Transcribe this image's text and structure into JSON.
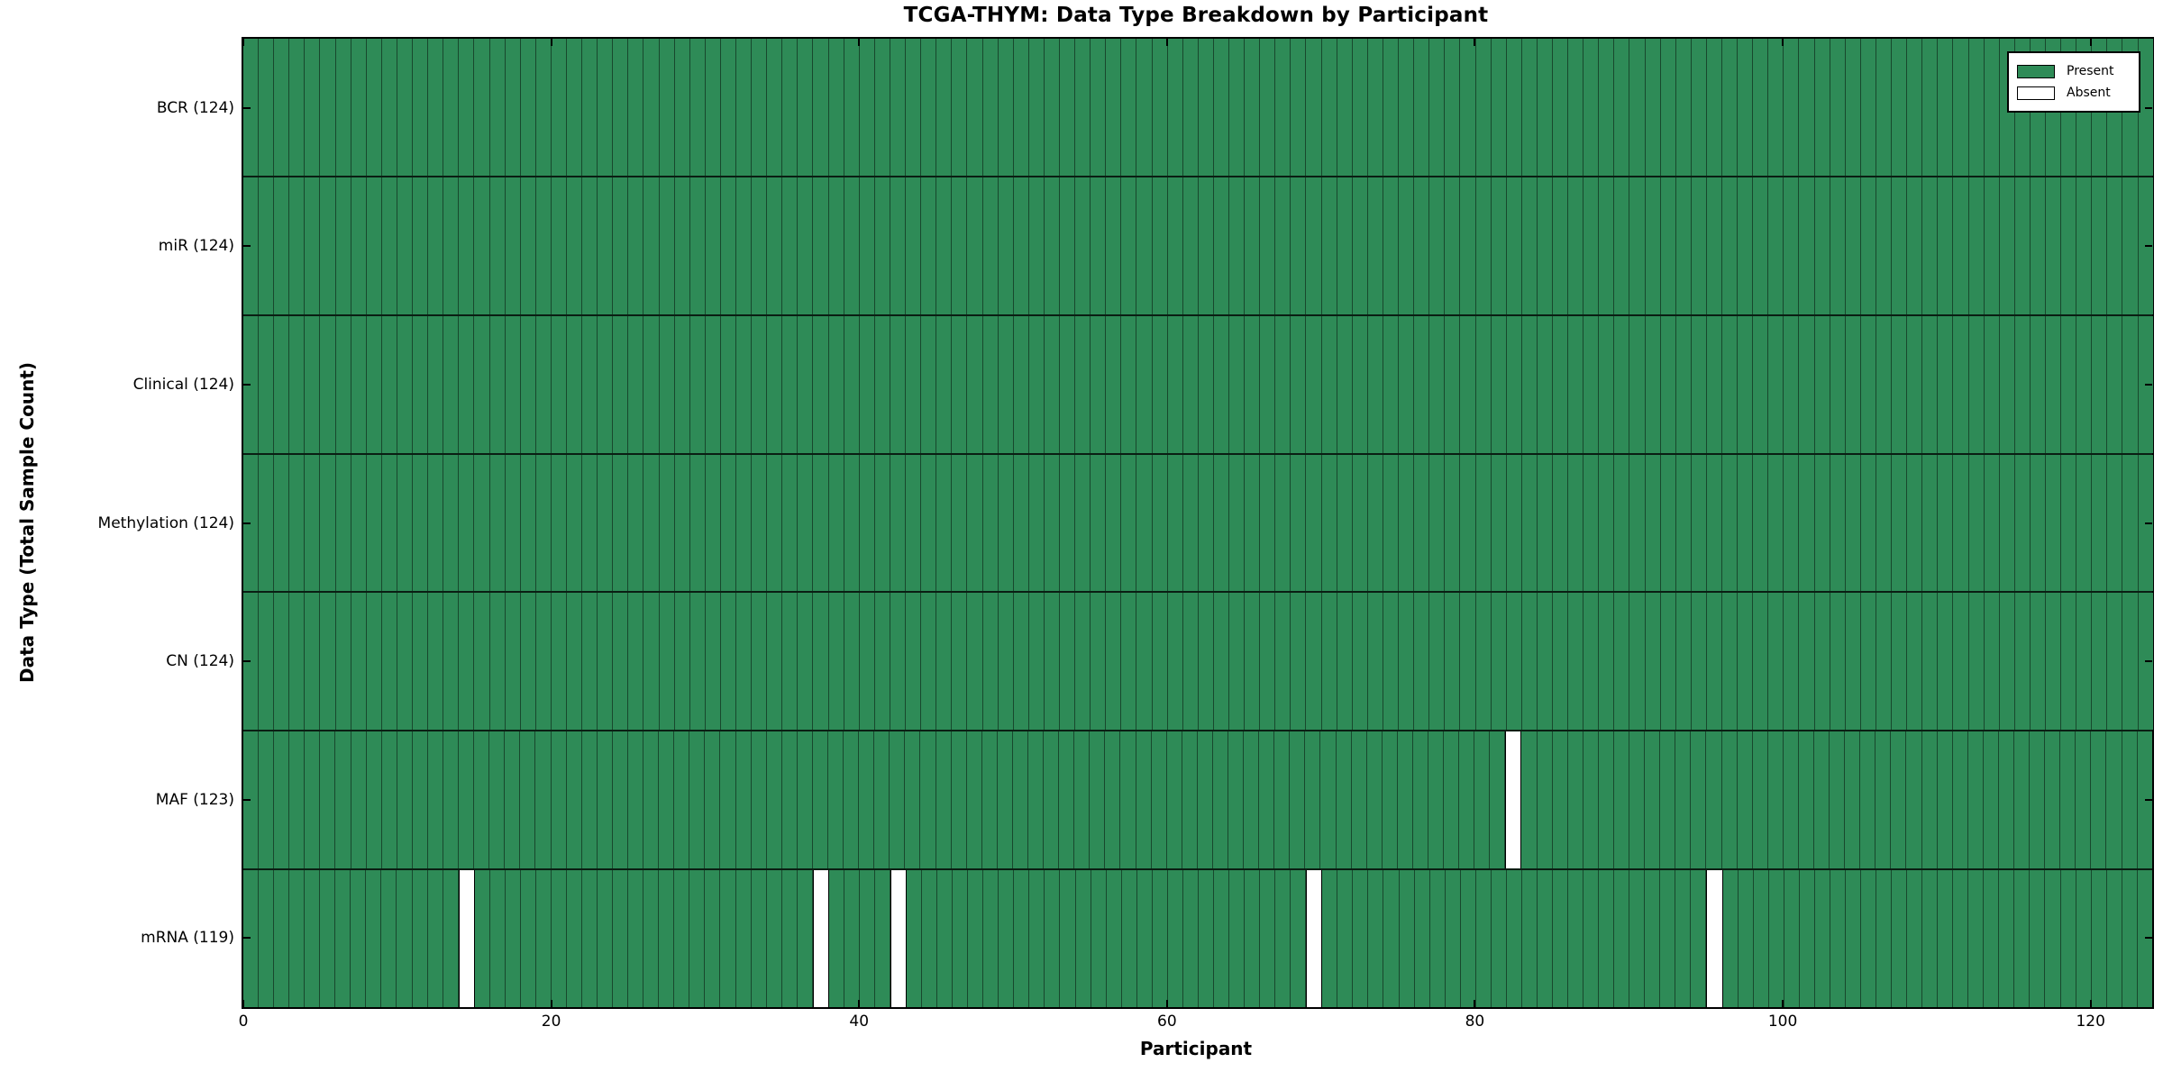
{
  "title": "TCGA-THYM: Data Type Breakdown by Participant",
  "colors": {
    "present": "#2E8B57",
    "absent": "#ffffff",
    "edge": "#000000",
    "background": "#ffffff"
  },
  "legend": {
    "position": "upper right",
    "items": [
      {
        "label": "Present",
        "color": "#2E8B57"
      },
      {
        "label": "Absent",
        "color": "#ffffff"
      }
    ]
  },
  "chart_data": {
    "type": "heatmap",
    "title": "TCGA-THYM: Data Type Breakdown by Participant",
    "xlabel": "Participant",
    "ylabel": "Data Type (Total Sample Count)",
    "xlim": [
      0,
      124
    ],
    "n_participants": 124,
    "x_ticks": [
      0,
      20,
      40,
      60,
      80,
      100,
      120
    ],
    "grid": "cell-borders",
    "legend_position": "upper right",
    "rows": [
      {
        "label": "BCR (124)",
        "data_type": "BCR",
        "present_count": 124,
        "absent_participants": []
      },
      {
        "label": "miR (124)",
        "data_type": "miR",
        "present_count": 124,
        "absent_participants": []
      },
      {
        "label": "Clinical (124)",
        "data_type": "Clinical",
        "present_count": 124,
        "absent_participants": []
      },
      {
        "label": "Methylation (124)",
        "data_type": "Methylation",
        "present_count": 124,
        "absent_participants": []
      },
      {
        "label": "CN (124)",
        "data_type": "CN",
        "present_count": 124,
        "absent_participants": []
      },
      {
        "label": "MAF (123)",
        "data_type": "MAF",
        "present_count": 123,
        "absent_participants": [
          82
        ]
      },
      {
        "label": "mRNA (119)",
        "data_type": "mRNA",
        "present_count": 119,
        "absent_participants": [
          14,
          37,
          42,
          69,
          95
        ]
      }
    ]
  }
}
